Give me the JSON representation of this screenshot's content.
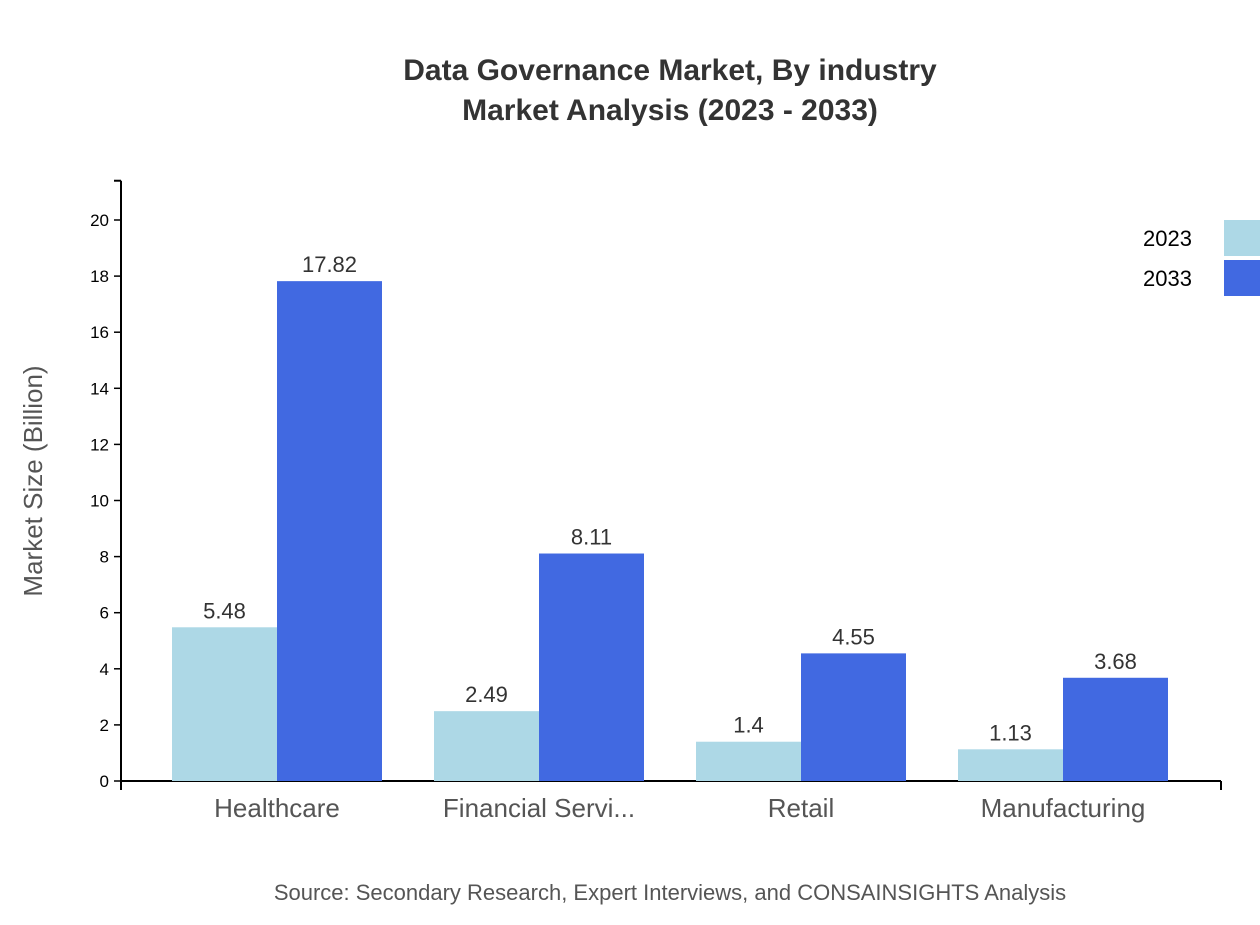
{
  "chart_data": {
    "type": "bar",
    "title": [
      "Data Governance Market, By industry",
      "Market Analysis (2023 - 2033)"
    ],
    "xlabel": "",
    "ylabel": "Market Size (Billion)",
    "categories": [
      "Healthcare",
      "Financial Servi...",
      "Retail",
      "Manufacturing"
    ],
    "series": [
      {
        "name": "2023",
        "values": [
          5.48,
          2.49,
          1.4,
          1.13
        ],
        "color": "#add8e6"
      },
      {
        "name": "2033",
        "values": [
          17.82,
          8.11,
          4.55,
          3.68
        ],
        "color": "#4169e1"
      }
    ],
    "ylim": [
      0,
      21.4
    ],
    "yticks": [
      0,
      2,
      4,
      6,
      8,
      10,
      12,
      14,
      16,
      18,
      20
    ],
    "grid": false,
    "legend": "top-right",
    "source": "Source: Secondary Research, Expert Interviews, and CONSAINSIGHTS Analysis"
  }
}
